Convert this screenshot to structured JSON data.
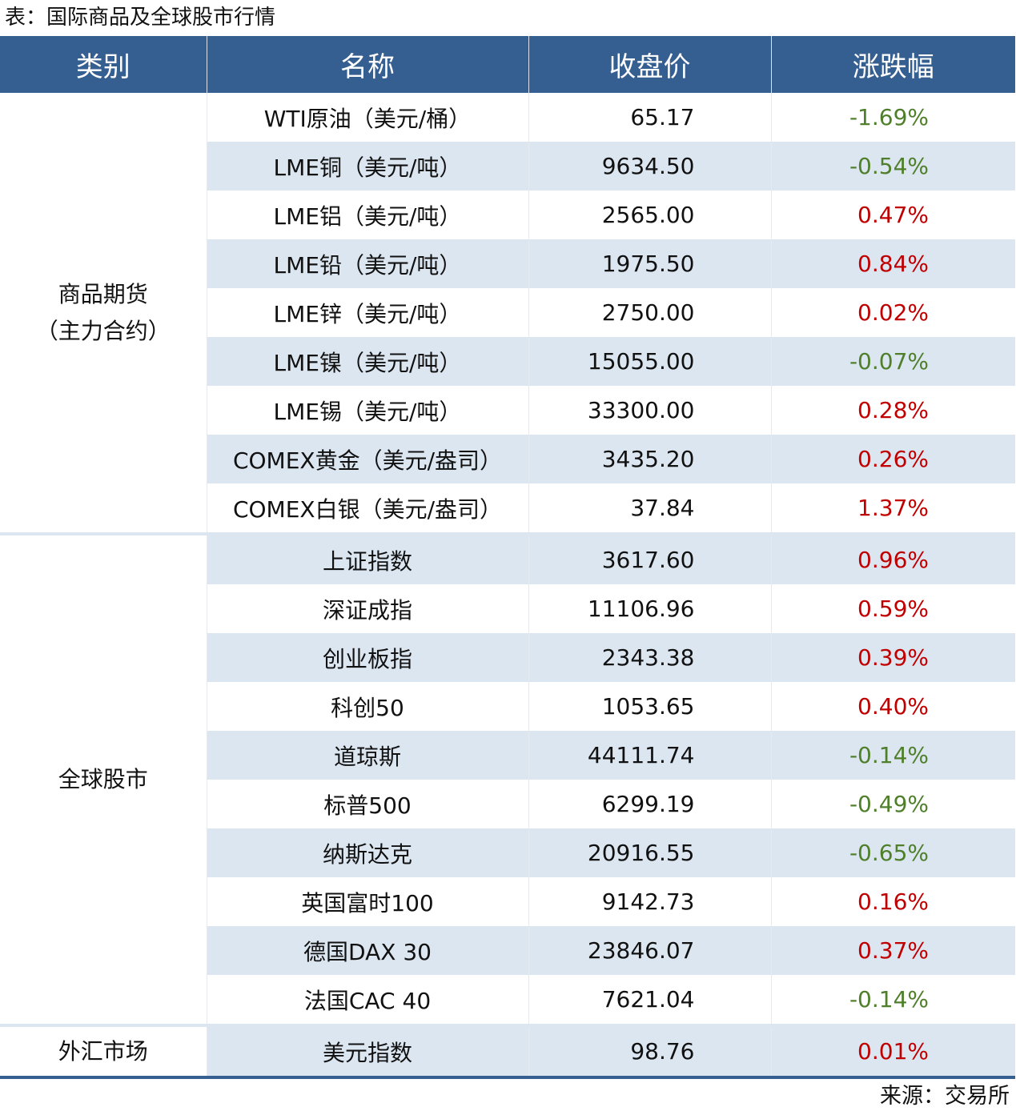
{
  "title": "表：国际商品及全球股市行情",
  "headers": [
    "类别",
    "名称",
    "收盘价",
    "涨跌幅"
  ],
  "colors": {
    "header": "#365F91",
    "band": "#DCE6F1",
    "up": "#C00000",
    "down": "#4F7F2A"
  },
  "groups": [
    {
      "category": "商品期货\n（主力合约）",
      "category_lines": [
        "商品期货",
        "（主力合约）"
      ],
      "rows": [
        {
          "name": "WTI原油（美元/桶）",
          "close": "65.17",
          "change": "-1.69%"
        },
        {
          "name": "LME铜（美元/吨）",
          "close": "9634.50",
          "change": "-0.54%"
        },
        {
          "name": "LME铝（美元/吨）",
          "close": "2565.00",
          "change": "0.47%"
        },
        {
          "name": "LME铅（美元/吨）",
          "close": "1975.50",
          "change": "0.84%"
        },
        {
          "name": "LME锌（美元/吨）",
          "close": "2750.00",
          "change": "0.02%"
        },
        {
          "name": "LME镍（美元/吨）",
          "close": "15055.00",
          "change": "-0.07%"
        },
        {
          "name": "LME锡（美元/吨）",
          "close": "33300.00",
          "change": "0.28%"
        },
        {
          "name": "COMEX黄金（美元/盎司）",
          "close": "3435.20",
          "change": "0.26%"
        },
        {
          "name": "COMEX白银（美元/盎司）",
          "close": "37.84",
          "change": "1.37%"
        }
      ]
    },
    {
      "category": "全球股市",
      "rows": [
        {
          "name": "上证指数",
          "close": "3617.60",
          "change": "0.96%"
        },
        {
          "name": "深证成指",
          "close": "11106.96",
          "change": "0.59%"
        },
        {
          "name": "创业板指",
          "close": "2343.38",
          "change": "0.39%"
        },
        {
          "name": "科创50",
          "close": "1053.65",
          "change": "0.40%"
        },
        {
          "name": "道琼斯",
          "close": "44111.74",
          "change": "-0.14%"
        },
        {
          "name": "标普500",
          "close": "6299.19",
          "change": "-0.49%"
        },
        {
          "name": "纳斯达克",
          "close": "20916.55",
          "change": "-0.65%"
        },
        {
          "name": "英国富时100",
          "close": "9142.73",
          "change": "0.16%"
        },
        {
          "name": "德国DAX 30",
          "close": "23846.07",
          "change": "0.37%"
        },
        {
          "name": "法国CAC 40",
          "close": "7621.04",
          "change": "-0.14%"
        }
      ]
    },
    {
      "category": "外汇市场",
      "rows": [
        {
          "name": "美元指数",
          "close": "98.76",
          "change": "0.01%"
        }
      ]
    }
  ],
  "source": "来源：交易所"
}
